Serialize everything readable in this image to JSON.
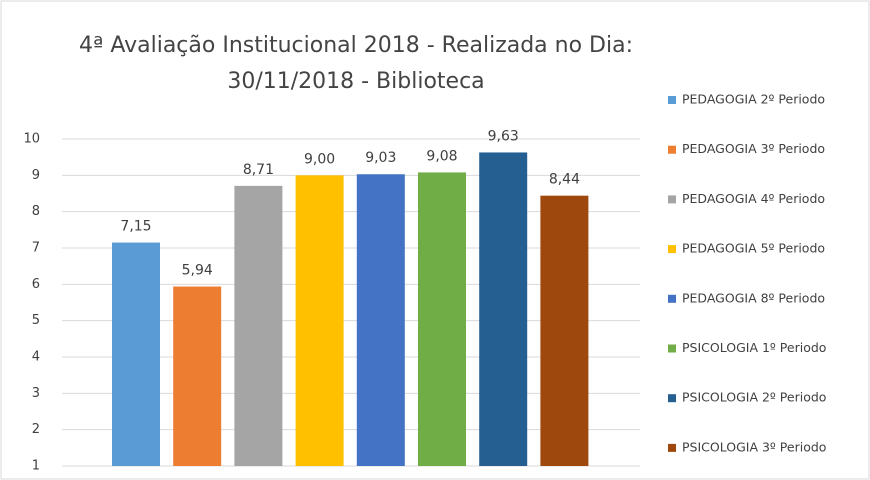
{
  "chart_data": {
    "type": "bar",
    "title": [
      "4ª Avaliação Institucional 2018 - Realizada no Dia:",
      "30/11/2018 - Biblioteca"
    ],
    "categories": [
      null
    ],
    "series": [
      {
        "name": "PEDAGOGIA 2º Periodo",
        "color": "#5b9bd5",
        "values": [
          7.15
        ],
        "value_labels": [
          "7,15"
        ]
      },
      {
        "name": "PEDAGOGIA 3º Periodo",
        "color": "#ed7d31",
        "values": [
          5.94
        ],
        "value_labels": [
          "5,94"
        ]
      },
      {
        "name": "PEDAGOGIA 4º Periodo",
        "color": "#a5a5a5",
        "values": [
          8.71
        ],
        "value_labels": [
          "8,71"
        ]
      },
      {
        "name": "PEDAGOGIA 5º Periodo",
        "color": "#ffc000",
        "values": [
          9.0
        ],
        "value_labels": [
          "9,00"
        ]
      },
      {
        "name": "PEDAGOGIA 8º Periodo",
        "color": "#4472c4",
        "values": [
          9.03
        ],
        "value_labels": [
          "9,03"
        ]
      },
      {
        "name": "PSICOLOGIA 1º Periodo",
        "color": "#70ad47",
        "values": [
          9.08
        ],
        "value_labels": [
          "9,08"
        ]
      },
      {
        "name": "PSICOLOGIA 2º Periodo",
        "color": "#255e91",
        "values": [
          9.63
        ],
        "value_labels": [
          "9,63"
        ]
      },
      {
        "name": "PSICOLOGIA 3º Periodo",
        "color": "#9e480e",
        "values": [
          8.44
        ],
        "value_labels": [
          "8,44"
        ]
      }
    ],
    "ylim": [
      1,
      10
    ],
    "yticks": [
      1,
      2,
      3,
      4,
      5,
      6,
      7,
      8,
      9,
      10
    ],
    "grid": true,
    "legend": "right"
  }
}
